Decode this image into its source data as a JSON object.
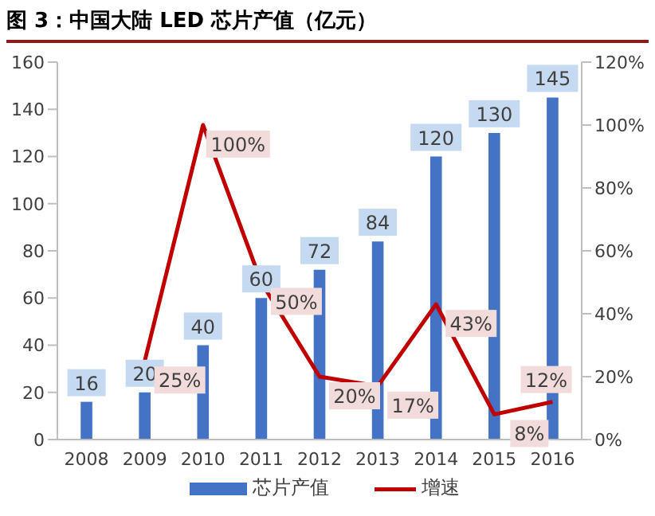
{
  "chart_data": {
    "type": "bar",
    "title": "图 3：中国大陆 LED 芯片产值（亿元）",
    "categories": [
      "2008",
      "2009",
      "2010",
      "2011",
      "2012",
      "2013",
      "2014",
      "2015",
      "2016"
    ],
    "series": [
      {
        "name": "芯片产值",
        "color": "#4472c4",
        "values": [
          16,
          20,
          40,
          60,
          72,
          84,
          120,
          130,
          145
        ],
        "value_labels": [
          "16",
          "20",
          "40",
          "60",
          "72",
          "84",
          "120",
          "130",
          "145"
        ]
      },
      {
        "name": "增速",
        "type": "line",
        "axis": "y2",
        "color": "#c00000",
        "values": [
          null,
          25,
          100,
          50,
          20,
          17,
          43,
          8,
          12
        ],
        "value_labels": [
          null,
          "25%",
          "100%",
          "50%",
          "20%",
          "17%",
          "43%",
          "8%",
          "12%"
        ]
      }
    ],
    "ylim": [
      0,
      160
    ],
    "yticks": [
      0,
      20,
      40,
      60,
      80,
      100,
      120,
      140,
      160
    ],
    "y2lim": [
      0,
      120
    ],
    "y2ticks": [
      {
        "value": 0,
        "label": "0%"
      },
      {
        "value": 20,
        "label": "20%"
      },
      {
        "value": 40,
        "label": "40%"
      },
      {
        "value": 60,
        "label": "60%"
      },
      {
        "value": 80,
        "label": "80%"
      },
      {
        "value": 100,
        "label": "100%"
      },
      {
        "value": 120,
        "label": "120%"
      }
    ],
    "legend": "bottom",
    "grid": false,
    "marker": "none"
  }
}
